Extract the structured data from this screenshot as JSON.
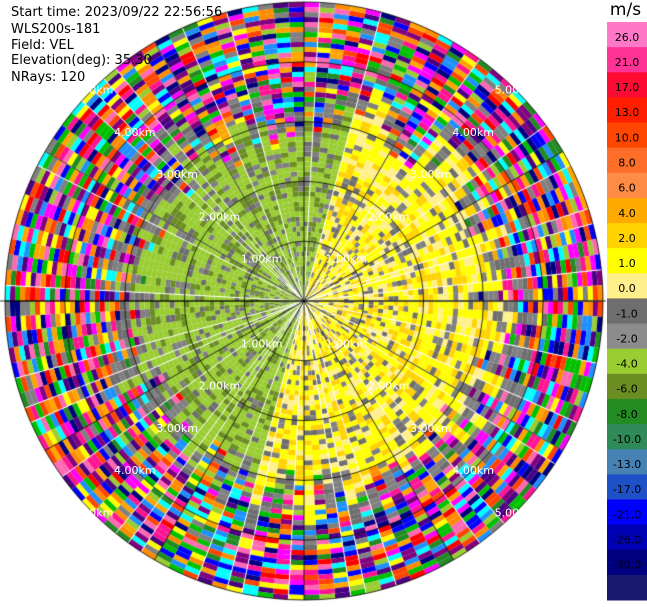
{
  "header": {
    "start_time": "Start time: 2023/09/22 22:56:56",
    "instrument": "WLS200s-181",
    "field": "Field: VEL",
    "elevation": "Elevation(deg): 35.30",
    "nrays": "NRays: 120"
  },
  "chart_data": {
    "type": "heatmap",
    "subtype": "radar-ppi",
    "field": "VEL",
    "units": "m/s",
    "nrays": 120,
    "elevation_deg": 35.3,
    "range_rings": [
      "1.00km",
      "2.00km",
      "3.00km",
      "4.00km",
      "5.00km"
    ],
    "grid_spoke_deg": [
      0,
      30,
      60,
      90,
      120,
      150,
      180,
      210,
      240,
      270,
      300,
      330
    ],
    "colorbar": {
      "title": "m/s",
      "tick_labels": [
        "26.0",
        "21.0",
        "17.0",
        "13.0",
        "10.0",
        "8.0",
        "6.0",
        "4.0",
        "2.0",
        "1.0",
        "0.0",
        "-1.0",
        "-2.0",
        "-4.0",
        "-6.0",
        "-8.0",
        "-10.0",
        "-13.0",
        "-17.0",
        "-21.0",
        "-26.0",
        "-30.0"
      ],
      "colors": [
        "#ff78c8",
        "#ff3296",
        "#ff0a32",
        "#ff1e00",
        "#ff4600",
        "#ff6e28",
        "#ff8c46",
        "#ffaa00",
        "#ffd200",
        "#ffff00",
        "#fff08c",
        "#6e6e6e",
        "#8c8c8c",
        "#9acd32",
        "#6b8e23",
        "#228b22",
        "#2e8b57",
        "#4682b4",
        "#1e50c8",
        "#0000ff",
        "#0000b4",
        "#000080",
        "#191970"
      ]
    },
    "noise_palette": [
      "#ff1493",
      "#ff00ff",
      "#ffff00",
      "#00c000",
      "#0000ff",
      "#800080",
      "#ff0000",
      "#00ffff",
      "#ff8c00",
      "#000080",
      "#808080",
      "#9acd32",
      "#ff69b4",
      "#228b22",
      "#ffa500",
      "#4b0082",
      "#ff4500",
      "#1e90ff"
    ],
    "sectors": [
      {
        "from_deg": 0,
        "to_deg": 180,
        "dominant_value": 2.0,
        "description_value": "positive 1 to 4 m/s"
      },
      {
        "from_deg": 180,
        "to_deg": 360,
        "dominant_value": -2.0,
        "description_value": "negative -1 to -4 m/s"
      }
    ],
    "signal_extent_km": 3.0
  }
}
